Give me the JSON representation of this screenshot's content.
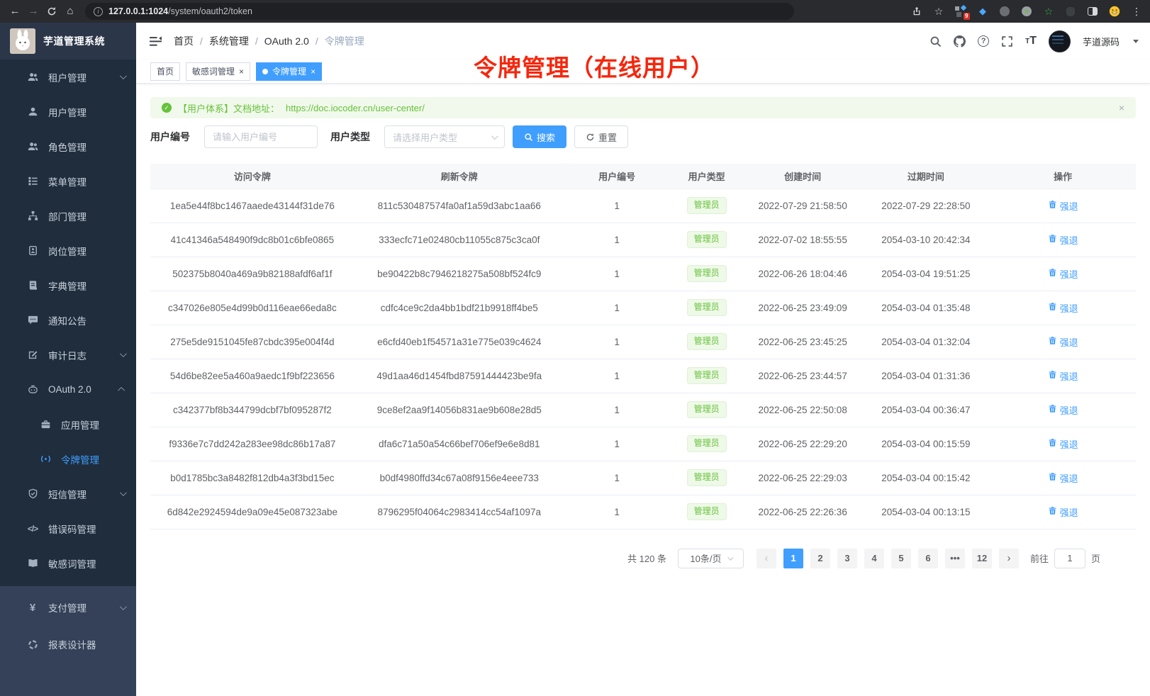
{
  "browser": {
    "url_host": "127.0.0.1:1024",
    "url_path": "/system/oauth2/token",
    "extension_badge": "9"
  },
  "app": {
    "title": "芋道管理系统"
  },
  "breadcrumb": [
    "首页",
    "系统管理",
    "OAuth 2.0",
    "令牌管理"
  ],
  "tags": [
    {
      "label": "首页",
      "closable": false,
      "active": false
    },
    {
      "label": "敏感词管理",
      "closable": true,
      "active": false
    },
    {
      "label": "令牌管理",
      "closable": true,
      "active": true
    }
  ],
  "annotation": "令牌管理（在线用户）",
  "header": {
    "username": "芋道源码"
  },
  "sidebar": {
    "menu": [
      {
        "label": "租户管理",
        "icon": "users-icon",
        "chevron": "down"
      },
      {
        "label": "用户管理",
        "icon": "user-icon"
      },
      {
        "label": "角色管理",
        "icon": "roles-icon"
      },
      {
        "label": "菜单管理",
        "icon": "menu-tree-icon"
      },
      {
        "label": "部门管理",
        "icon": "org-icon"
      },
      {
        "label": "岗位管理",
        "icon": "badge-icon"
      },
      {
        "label": "字典管理",
        "icon": "dict-icon"
      },
      {
        "label": "通知公告",
        "icon": "notice-icon"
      },
      {
        "label": "审计日志",
        "icon": "audit-icon",
        "chevron": "down"
      },
      {
        "label": "OAuth 2.0",
        "icon": "oauth-icon",
        "chevron": "up"
      },
      {
        "label": "应用管理",
        "icon": "app-icon",
        "sub": true
      },
      {
        "label": "令牌管理",
        "icon": "token-icon",
        "sub": true,
        "active": true
      },
      {
        "label": "短信管理",
        "icon": "sms-icon",
        "chevron": "down"
      },
      {
        "label": "错误码管理",
        "icon": "errcode-icon"
      },
      {
        "label": "敏感词管理",
        "icon": "sensitive-icon"
      }
    ],
    "menu_bottom": [
      {
        "label": "支付管理",
        "icon": "pay-icon",
        "chevron": "down"
      },
      {
        "label": "报表设计器",
        "icon": "report-icon"
      }
    ]
  },
  "alert": {
    "text": "【用户体系】文档地址：",
    "link": "https://doc.iocoder.cn/user-center/"
  },
  "filter": {
    "user_id_label": "用户编号",
    "user_id_placeholder": "请输入用户编号",
    "user_type_label": "用户类型",
    "user_type_placeholder": "请选择用户类型",
    "search_label": "搜索",
    "reset_label": "重置"
  },
  "table": {
    "headers": [
      "访问令牌",
      "刷新令牌",
      "用户编号",
      "用户类型",
      "创建时间",
      "过期时间",
      "操作"
    ],
    "action_label": "强退",
    "rows": [
      {
        "access": "1ea5e44f8bc1467aaede43144f31de76",
        "refresh": "811c530487574fa0af1a59d3abc1aa66",
        "user_id": "1",
        "user_type": "管理员",
        "created": "2022-07-29 21:58:50",
        "expires": "2022-07-29 22:28:50"
      },
      {
        "access": "41c41346a548490f9dc8b01c6bfe0865",
        "refresh": "333ecfc71e02480cb11055c875c3ca0f",
        "user_id": "1",
        "user_type": "管理员",
        "created": "2022-07-02 18:55:55",
        "expires": "2054-03-10 20:42:34"
      },
      {
        "access": "502375b8040a469a9b82188afdf6af1f",
        "refresh": "be90422b8c7946218275a508bf524fc9",
        "user_id": "1",
        "user_type": "管理员",
        "created": "2022-06-26 18:04:46",
        "expires": "2054-03-04 19:51:25"
      },
      {
        "access": "c347026e805e4d99b0d116eae66eda8c",
        "refresh": "cdfc4ce9c2da4bb1bdf21b9918ff4be5",
        "user_id": "1",
        "user_type": "管理员",
        "created": "2022-06-25 23:49:09",
        "expires": "2054-03-04 01:35:48"
      },
      {
        "access": "275e5de9151045fe87cbdc395e004f4d",
        "refresh": "e6cfd40eb1f54571a31e775e039c4624",
        "user_id": "1",
        "user_type": "管理员",
        "created": "2022-06-25 23:45:25",
        "expires": "2054-03-04 01:32:04"
      },
      {
        "access": "54d6be82ee5a460a9aedc1f9bf223656",
        "refresh": "49d1aa46d1454fbd87591444423be9fa",
        "user_id": "1",
        "user_type": "管理员",
        "created": "2022-06-25 23:44:57",
        "expires": "2054-03-04 01:31:36"
      },
      {
        "access": "c342377bf8b344799dcbf7bf095287f2",
        "refresh": "9ce8ef2aa9f14056b831ae9b608e28d5",
        "user_id": "1",
        "user_type": "管理员",
        "created": "2022-06-25 22:50:08",
        "expires": "2054-03-04 00:36:47"
      },
      {
        "access": "f9336e7c7dd242a283ee98dc86b17a87",
        "refresh": "dfa6c71a50a54c66bef706ef9e6e8d81",
        "user_id": "1",
        "user_type": "管理员",
        "created": "2022-06-25 22:29:20",
        "expires": "2054-03-04 00:15:59"
      },
      {
        "access": "b0d1785bc3a8482f812db4a3f3bd15ec",
        "refresh": "b0df4980ffd34c67a08f9156e4eee733",
        "user_id": "1",
        "user_type": "管理员",
        "created": "2022-06-25 22:29:03",
        "expires": "2054-03-04 00:15:42"
      },
      {
        "access": "6d842e2924594de9a09e45e087323abe",
        "refresh": "8796295f04064c2983414cc54af1097a",
        "user_id": "1",
        "user_type": "管理员",
        "created": "2022-06-25 22:26:36",
        "expires": "2054-03-04 00:13:15"
      }
    ]
  },
  "pagination": {
    "total": "共 120 条",
    "page_size": "10条/页",
    "pages": [
      "1",
      "2",
      "3",
      "4",
      "5",
      "6",
      "...",
      "12"
    ],
    "active_page": "1",
    "prev": "‹",
    "next": "›",
    "goto_label": "前往",
    "goto_value": "1",
    "page_label": "页"
  },
  "colors": {
    "accent": "#409eff",
    "success": "#67c23a",
    "annotation": "#f5270d",
    "sidebar_dark": "#1f2d3d",
    "sidebar_light": "#344158"
  }
}
